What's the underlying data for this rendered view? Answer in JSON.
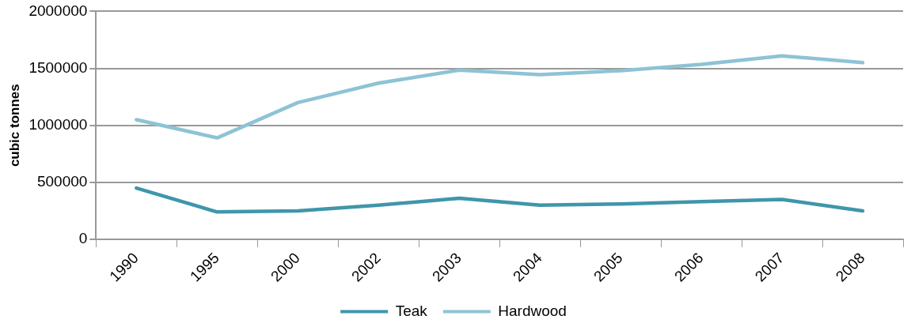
{
  "chart_data": {
    "type": "line",
    "ylabel": "cubic tonnes",
    "categories": [
      "1990",
      "1995",
      "2000",
      "2002",
      "2003",
      "2004",
      "2005",
      "2006",
      "2007",
      "2008"
    ],
    "series": [
      {
        "name": "Teak",
        "color": "#3f96ab",
        "values": [
          450000,
          240000,
          250000,
          300000,
          360000,
          300000,
          310000,
          330000,
          350000,
          250000
        ]
      },
      {
        "name": "Hardwood",
        "color": "#8dc3d5",
        "values": [
          1050000,
          890000,
          1200000,
          1370000,
          1485000,
          1445000,
          1480000,
          1535000,
          1610000,
          1550000
        ]
      }
    ],
    "ylim": [
      0,
      2000000
    ],
    "yticks": [
      0,
      500000,
      1000000,
      1500000,
      2000000
    ],
    "grid": "y",
    "legend": "bottom",
    "marker": "none",
    "line_style": "solid"
  }
}
